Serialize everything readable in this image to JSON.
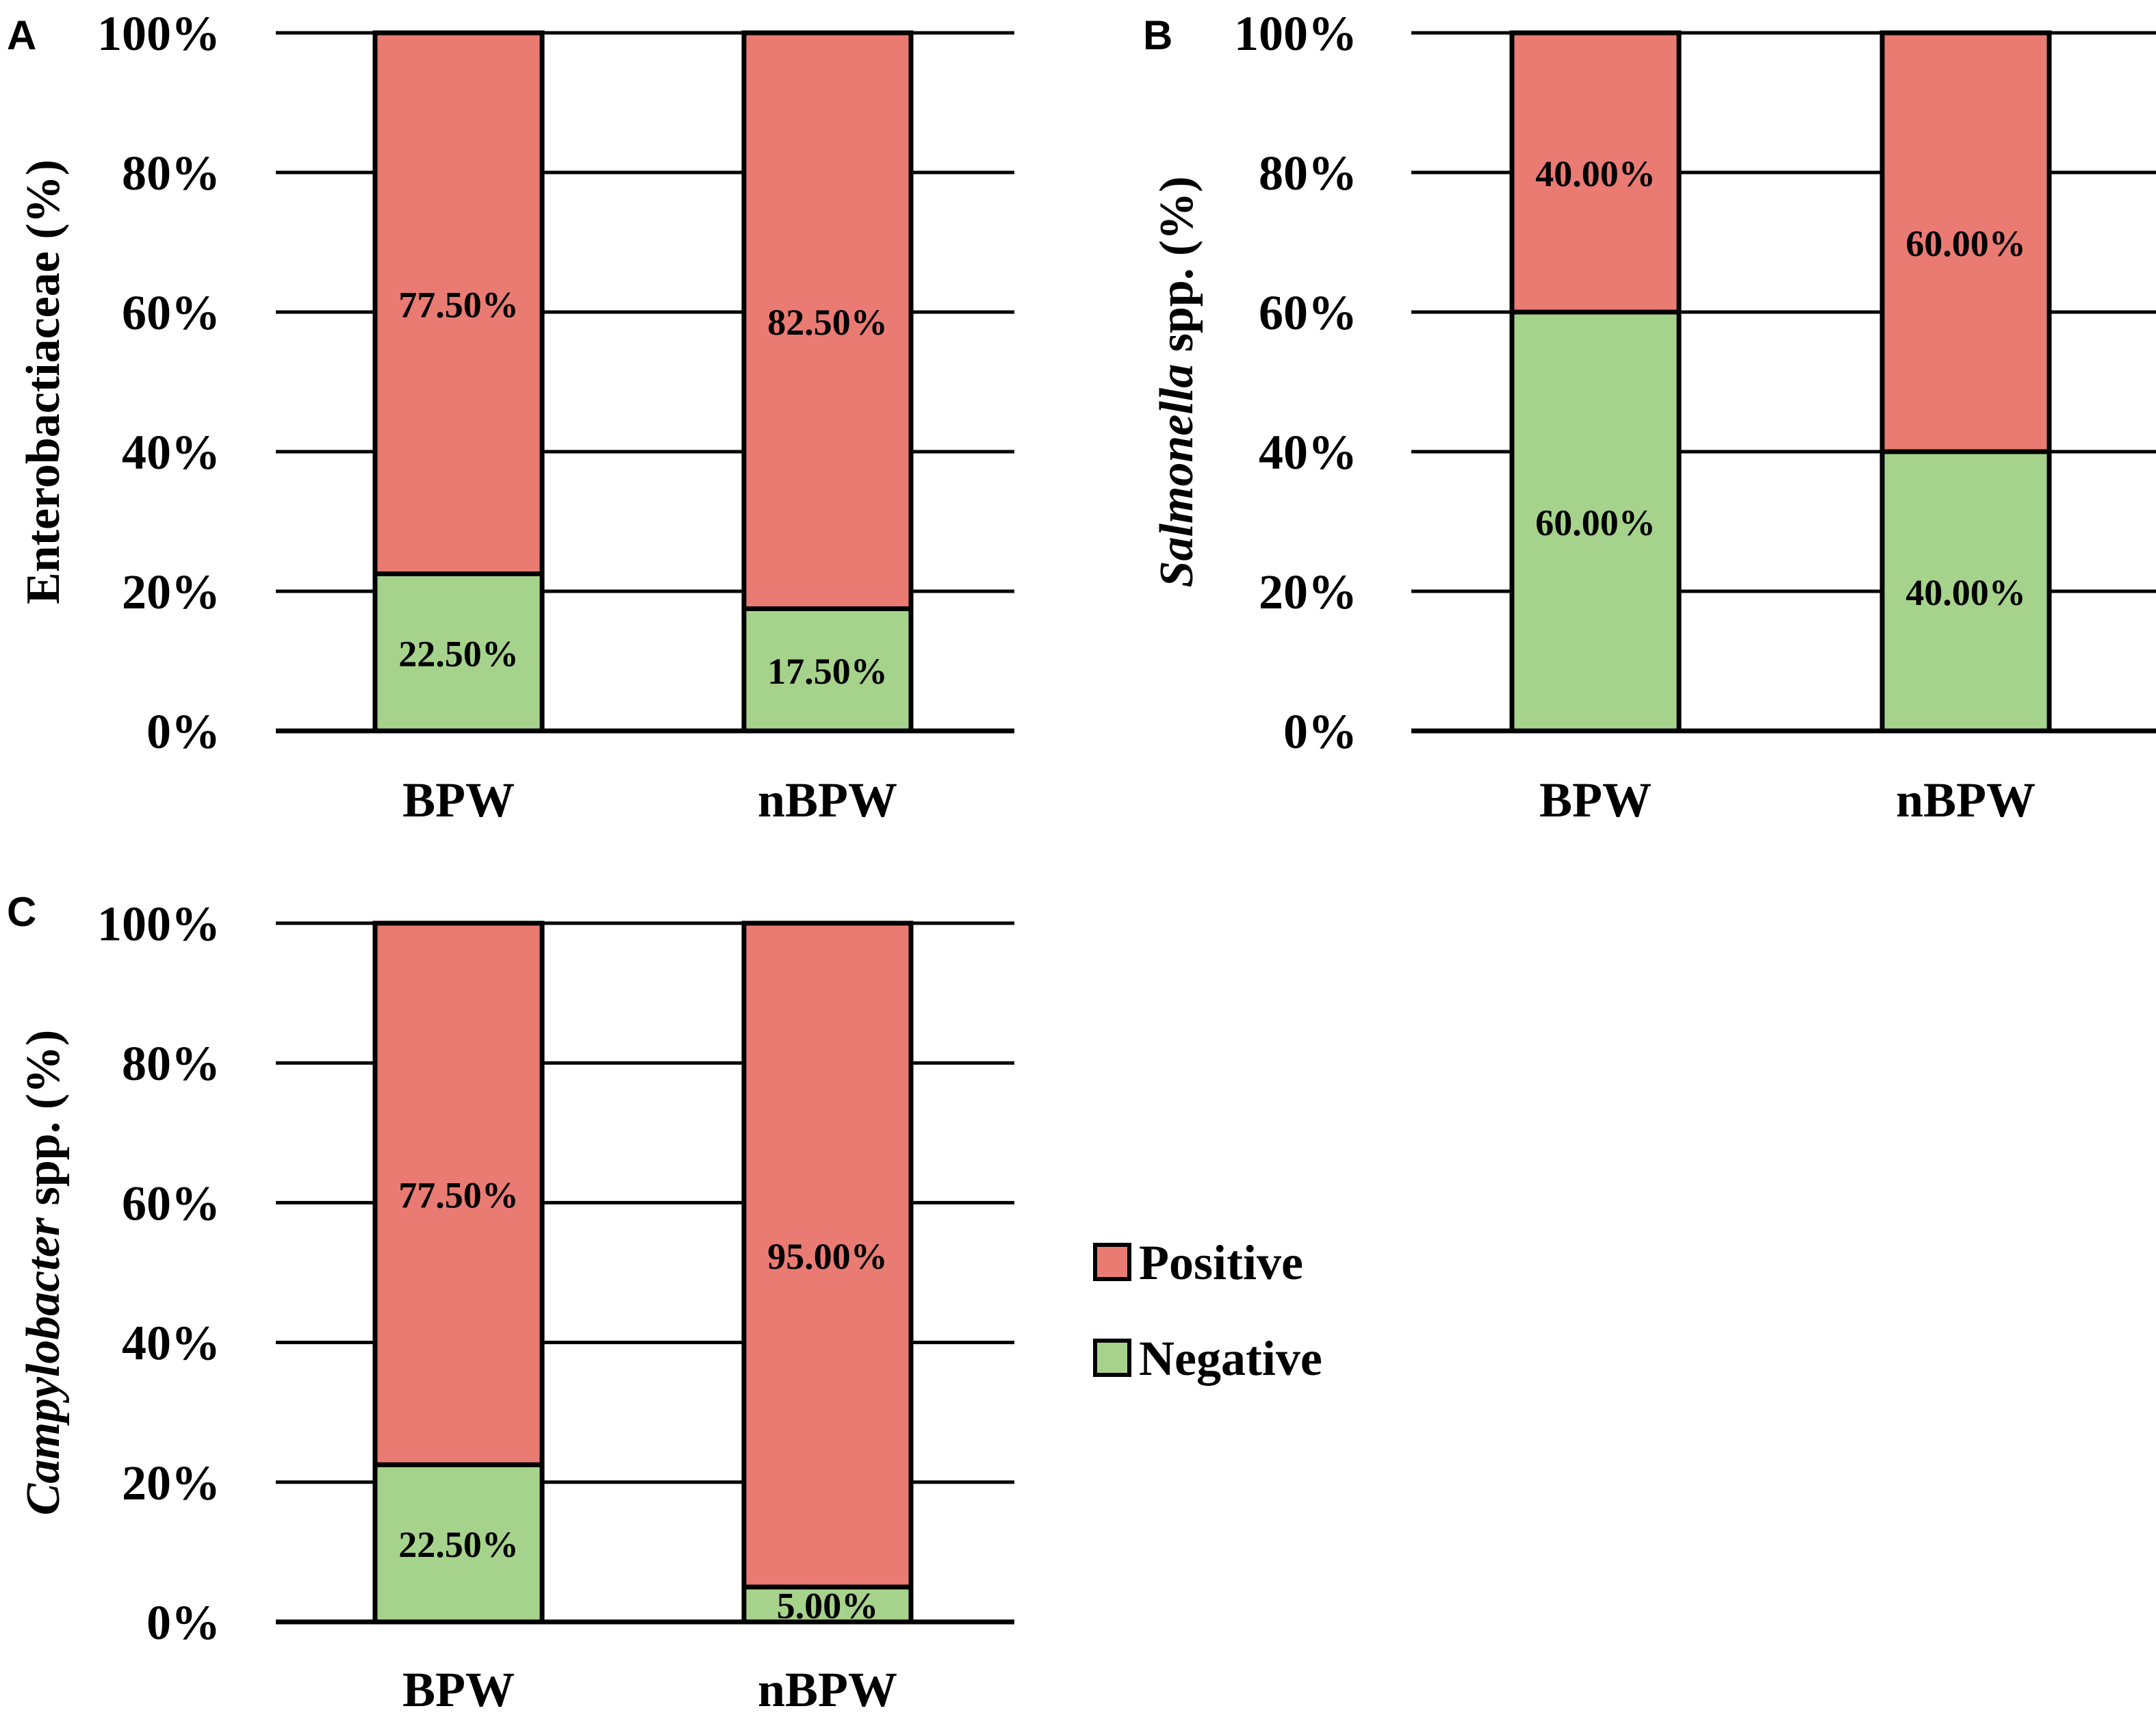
{
  "colors": {
    "positive": "#e97b73",
    "negative": "#a6d38b",
    "outline": "#000000"
  },
  "legend": {
    "items": [
      {
        "label": "Positive",
        "color_key": "positive"
      },
      {
        "label": "Negative",
        "color_key": "negative"
      }
    ]
  },
  "chart_data": [
    {
      "panel": "A",
      "type": "bar",
      "stacked": true,
      "categories": [
        "BPW",
        "nBPW"
      ],
      "series": [
        {
          "name": "Negative",
          "values": [
            22.5,
            17.5
          ],
          "labels": [
            "22.50%",
            "17.50%"
          ]
        },
        {
          "name": "Positive",
          "values": [
            77.5,
            82.5
          ],
          "labels": [
            "77.50%",
            "82.50%"
          ]
        }
      ],
      "ylabel_parts": [
        {
          "text": "Enterobactiaceae (%)",
          "italic": false
        }
      ],
      "yticks": [
        "0%",
        "20%",
        "40%",
        "60%",
        "80%",
        "100%"
      ],
      "ylim": [
        0,
        100
      ],
      "grid": true
    },
    {
      "panel": "B",
      "type": "bar",
      "stacked": true,
      "categories": [
        "BPW",
        "nBPW"
      ],
      "series": [
        {
          "name": "Negative",
          "values": [
            60,
            40
          ],
          "labels": [
            "60.00%",
            "40.00%"
          ]
        },
        {
          "name": "Positive",
          "values": [
            40,
            60
          ],
          "labels": [
            "40.00%",
            "60.00%"
          ]
        }
      ],
      "ylabel_parts": [
        {
          "text": "Salmonella",
          "italic": true
        },
        {
          "text": " spp. (%)",
          "italic": false
        }
      ],
      "yticks": [
        "0%",
        "20%",
        "40%",
        "60%",
        "80%",
        "100%"
      ],
      "ylim": [
        0,
        100
      ],
      "grid": true
    },
    {
      "panel": "C",
      "type": "bar",
      "stacked": true,
      "categories": [
        "BPW",
        "nBPW"
      ],
      "series": [
        {
          "name": "Negative",
          "values": [
            22.5,
            5
          ],
          "labels": [
            "22.50%",
            "5.00%"
          ]
        },
        {
          "name": "Positive",
          "values": [
            77.5,
            95
          ],
          "labels": [
            "77.50%",
            "95.00%"
          ]
        }
      ],
      "ylabel_parts": [
        {
          "text": "Campylobacter",
          "italic": true
        },
        {
          "text": " spp. (%)",
          "italic": false
        }
      ],
      "yticks": [
        "0%",
        "20%",
        "40%",
        "60%",
        "80%",
        "100%"
      ],
      "ylim": [
        0,
        100
      ],
      "grid": true
    }
  ]
}
